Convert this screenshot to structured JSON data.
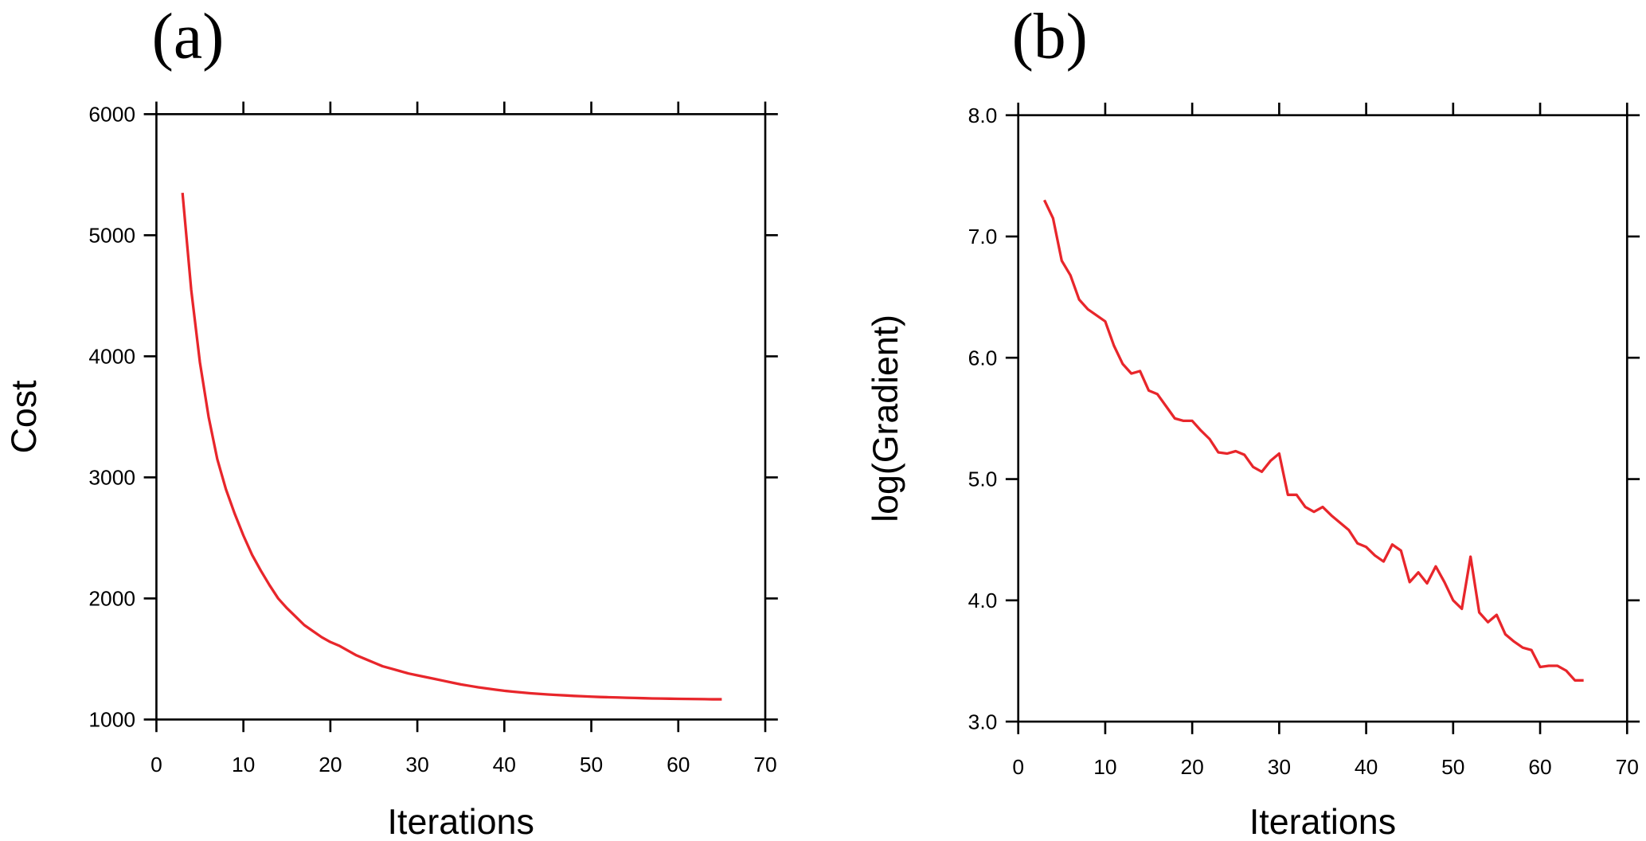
{
  "chart_data": [
    {
      "type": "line",
      "title": "(a)",
      "x_label": "Iterations",
      "y_label": "Cost",
      "x": [
        3,
        4,
        5,
        6,
        7,
        8,
        9,
        10,
        11,
        12,
        13,
        14,
        15,
        16,
        17,
        18,
        19,
        20,
        21,
        22,
        23,
        24,
        25,
        26,
        27,
        28,
        29,
        30,
        31,
        32,
        33,
        34,
        35,
        36,
        37,
        38,
        39,
        40,
        41,
        42,
        43,
        44,
        45,
        46,
        47,
        48,
        49,
        50,
        51,
        52,
        53,
        54,
        55,
        56,
        57,
        58,
        59,
        60,
        61,
        62,
        63,
        64,
        65
      ],
      "series": [
        {
          "color": "#e8262b",
          "values": [
            5350,
            4550,
            3950,
            3500,
            3150,
            2900,
            2700,
            2520,
            2360,
            2230,
            2110,
            2000,
            1920,
            1850,
            1780,
            1730,
            1680,
            1640,
            1610,
            1570,
            1530,
            1500,
            1470,
            1440,
            1420,
            1400,
            1380,
            1365,
            1350,
            1335,
            1320,
            1305,
            1290,
            1278,
            1266,
            1256,
            1246,
            1237,
            1230,
            1223,
            1217,
            1212,
            1207,
            1203,
            1199,
            1195,
            1192,
            1189,
            1186,
            1184,
            1182,
            1180,
            1178,
            1176,
            1174,
            1173,
            1172,
            1171,
            1170,
            1169,
            1168,
            1167,
            1167
          ]
        }
      ],
      "xlim": [
        0,
        70
      ],
      "xticks": [
        0,
        10,
        20,
        30,
        40,
        50,
        60,
        70
      ],
      "ylim": [
        1000,
        6000
      ],
      "yticks": [
        1000,
        2000,
        3000,
        4000,
        5000,
        6000
      ]
    },
    {
      "type": "line",
      "title": "(b)",
      "x_label": "Iterations",
      "y_label": "log(Gradient)",
      "x": [
        3,
        4,
        5,
        6,
        7,
        8,
        9,
        10,
        11,
        12,
        13,
        14,
        15,
        16,
        17,
        18,
        19,
        20,
        21,
        22,
        23,
        24,
        25,
        26,
        27,
        28,
        29,
        30,
        31,
        32,
        33,
        34,
        35,
        36,
        37,
        38,
        39,
        40,
        41,
        42,
        43,
        44,
        45,
        46,
        47,
        48,
        49,
        50,
        51,
        52,
        53,
        54,
        55,
        56,
        57,
        58,
        59,
        60,
        61,
        62,
        63,
        64,
        65
      ],
      "series": [
        {
          "color": "#e8262b",
          "values": [
            7.3,
            7.15,
            6.8,
            6.68,
            6.48,
            6.4,
            6.35,
            6.3,
            6.1,
            5.95,
            5.87,
            5.89,
            5.73,
            5.7,
            5.6,
            5.5,
            5.48,
            5.48,
            5.4,
            5.33,
            5.22,
            5.21,
            5.23,
            5.2,
            5.1,
            5.06,
            5.15,
            5.21,
            4.87,
            4.87,
            4.77,
            4.73,
            4.77,
            4.7,
            4.64,
            4.58,
            4.47,
            4.44,
            4.37,
            4.32,
            4.46,
            4.41,
            4.15,
            4.23,
            4.14,
            4.28,
            4.15,
            4.0,
            3.93,
            4.36,
            3.9,
            3.82,
            3.88,
            3.72,
            3.66,
            3.61,
            3.59,
            3.45,
            3.46,
            3.46,
            3.42,
            3.34,
            3.34
          ]
        }
      ],
      "xlim": [
        0,
        70
      ],
      "xticks": [
        0,
        10,
        20,
        30,
        40,
        50,
        60,
        70
      ],
      "ylim": [
        3,
        8
      ],
      "yticks": [
        {
          "value": 3,
          "label": "3.0"
        },
        {
          "value": 4,
          "label": "4.0"
        },
        {
          "value": 5,
          "label": "5.0"
        },
        {
          "value": 6,
          "label": "6.0"
        },
        {
          "value": 7,
          "label": "7.0"
        },
        {
          "value": 8,
          "label": "8.0"
        }
      ]
    }
  ]
}
